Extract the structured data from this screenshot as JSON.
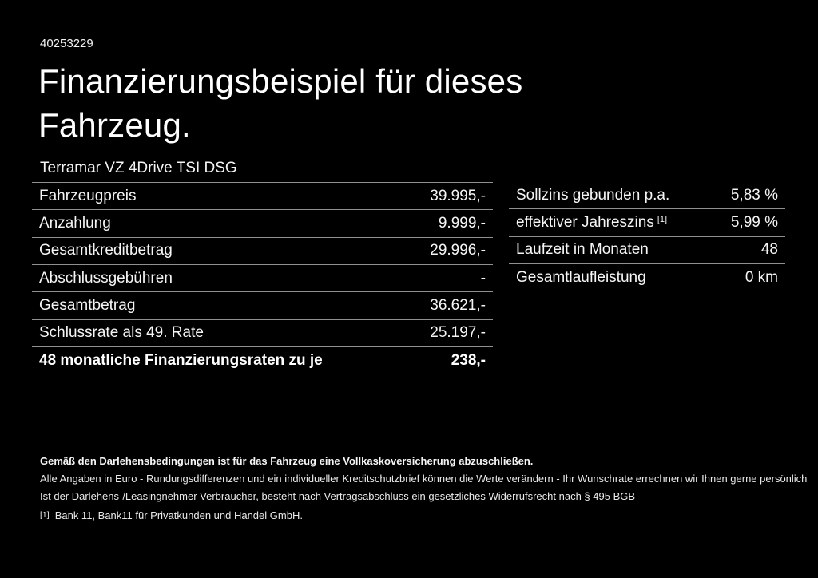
{
  "page": {
    "background_color": "#000000",
    "text_color": "#ffffff",
    "divider_color": "#909090",
    "doc_number": "40253229",
    "title": "Finanzierungsbeispiel für dieses Fahrzeug.",
    "vehicle_model": "Terramar VZ 4Drive TSI DSG"
  },
  "financing_table": {
    "rows": [
      {
        "label": "Fahrzeugpreis",
        "value": "39.995,-"
      },
      {
        "label": "Anzahlung",
        "value": "9.999,-"
      },
      {
        "label": "Gesamtkreditbetrag",
        "value": "29.996,-"
      },
      {
        "label": "Abschlussgebühren",
        "value": "-"
      },
      {
        "label": "Gesamtbetrag",
        "value": "36.621,-"
      },
      {
        "label": "Schlussrate als 49. Rate",
        "value": "25.197,-"
      },
      {
        "label": "48 monatliche Finanzierungsraten zu je",
        "value": "238,-"
      }
    ]
  },
  "conditions_table": {
    "rows": [
      {
        "label": "Sollzins gebunden p.a.",
        "value": "5,83 %"
      },
      {
        "label": "effektiver Jahreszins",
        "sup": "[1]",
        "value": "5,99 %"
      },
      {
        "label": "Laufzeit in Monaten",
        "value": "48"
      },
      {
        "label": "Gesamtlaufleistung",
        "value": "0 km"
      }
    ]
  },
  "disclaimer": {
    "line1": "Gemäß den Darlehensbedingungen ist für das Fahrzeug eine Vollkaskoversicherung abzuschließen.",
    "line2": "Alle Angaben in Euro - Rundungsdifferenzen und ein individueller Kreditschutzbrief können die Werte verändern - Ihr Wunschrate errechnen wir Ihnen gerne persönlich",
    "line3": "Ist der Darlehens-/Leasingnehmer Verbraucher, besteht nach Vertragsabschluss ein gesetzliches Widerrufsrecht nach § 495 BGB",
    "footnote_marker": "[1]",
    "footnote_text": "Bank 11, Bank11 für Privatkunden und Handel GmbH."
  }
}
